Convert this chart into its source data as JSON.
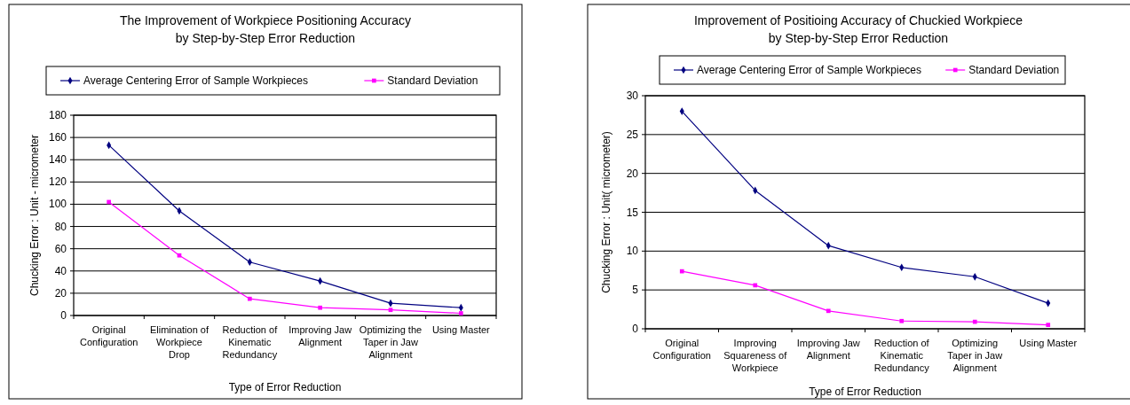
{
  "chart_data": [
    {
      "type": "line",
      "title": "The Improvement of Workpiece Positioning Accuracy\nby Step-by-Step Error Reduction",
      "xlabel": "Type of Error Reduction",
      "ylabel": "Chucking Error : Unit - micrometer",
      "categories": [
        "Original\nConfiguration",
        "Elimination of\nWorkpiece\nDrop",
        "Reduction of\nKinematic\nRedundancy",
        "Improving Jaw\nAlignment",
        "Optimizing the\nTaper in Jaw\nAlignment",
        "Using Master"
      ],
      "series": [
        {
          "name": "Average Centering Error of Sample Workpieces",
          "color": "#000080",
          "marker": "diamond",
          "values": [
            153,
            94,
            48,
            31,
            11,
            7
          ]
        },
        {
          "name": "Standard Deviation",
          "color": "#ff00ff",
          "marker": "square",
          "values": [
            102,
            54,
            15,
            7,
            5,
            2
          ]
        }
      ],
      "ylim": [
        0,
        180
      ],
      "yticks": [
        0,
        20,
        40,
        60,
        80,
        100,
        120,
        140,
        160,
        180
      ],
      "grid": "y",
      "legend": "top"
    },
    {
      "type": "line",
      "title": "Improvement of Positioing Accuracy of Chuckied Workpiece\nby Step-by-Step Error Reduction",
      "xlabel": "Type of Error Reduction",
      "ylabel": "Chucking Error : Unit( micrometer)",
      "categories": [
        "Original\nConfiguration",
        "Improving\nSquareness of\nWorkpiece",
        "Improving Jaw\nAlignment",
        "Reduction of\nKinematic\nRedundancy",
        "Optimizing\nTaper in Jaw\nAlignment",
        "Using Master"
      ],
      "series": [
        {
          "name": "Average Centering Error of Sample Workpieces",
          "color": "#000080",
          "marker": "diamond",
          "values": [
            28,
            17.8,
            10.7,
            7.9,
            6.7,
            3.3
          ]
        },
        {
          "name": "Standard Deviation",
          "color": "#ff00ff",
          "marker": "square",
          "values": [
            7.4,
            5.6,
            2.3,
            1.0,
            0.9,
            0.5
          ]
        }
      ],
      "ylim": [
        0,
        30
      ],
      "yticks": [
        0,
        5,
        10,
        15,
        20,
        25,
        30
      ],
      "grid": "y",
      "legend": "top"
    }
  ]
}
